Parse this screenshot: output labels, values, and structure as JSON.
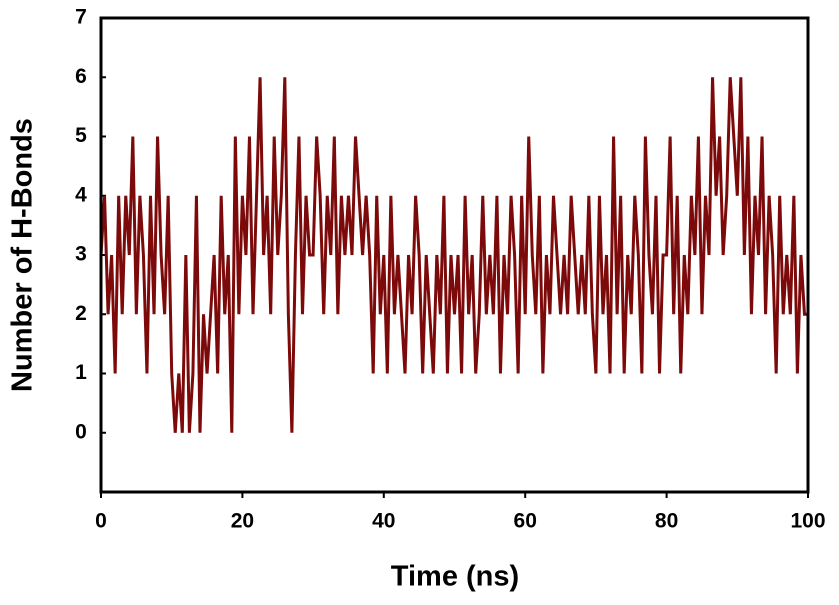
{
  "chart_data": {
    "type": "line",
    "x_label": "Time (ns)",
    "y_label": "Number of H-Bonds",
    "xlim": [
      0,
      100
    ],
    "xticks": [
      0,
      20,
      40,
      60,
      80,
      100
    ],
    "ylim": [
      -1,
      7
    ],
    "yticks": [
      0,
      1,
      2,
      3,
      4,
      5,
      6,
      7
    ],
    "series": [
      {
        "name": "H-Bonds",
        "color": "#7d0a0a",
        "x": [
          0,
          0.5,
          1,
          1.5,
          2,
          2.5,
          3,
          3.5,
          4,
          4.5,
          5,
          5.5,
          6,
          6.5,
          7,
          7.5,
          8,
          8.5,
          9,
          9.5,
          10,
          10.5,
          11,
          11.5,
          12,
          12.5,
          13,
          13.5,
          14,
          14.5,
          15,
          15.5,
          16,
          16.5,
          17,
          17.5,
          18,
          18.5,
          19,
          19.5,
          20,
          20.5,
          21,
          21.5,
          22,
          22.5,
          23,
          23.5,
          24,
          24.5,
          25,
          25.5,
          26,
          26.5,
          27,
          27.5,
          28,
          28.5,
          29,
          29.5,
          30,
          30.5,
          31,
          31.5,
          32,
          32.5,
          33,
          33.5,
          34,
          34.5,
          35,
          35.5,
          36,
          36.5,
          37,
          37.5,
          38,
          38.5,
          39,
          39.5,
          40,
          40.5,
          41,
          41.5,
          42,
          42.5,
          43,
          43.5,
          44,
          44.5,
          45,
          45.5,
          46,
          46.5,
          47,
          47.5,
          48,
          48.5,
          49,
          49.5,
          50,
          50.5,
          51,
          51.5,
          52,
          52.5,
          53,
          53.5,
          54,
          54.5,
          55,
          55.5,
          56,
          56.5,
          57,
          57.5,
          58,
          58.5,
          59,
          59.5,
          60,
          60.5,
          61,
          61.5,
          62,
          62.5,
          63,
          63.5,
          64,
          64.5,
          65,
          65.5,
          66,
          66.5,
          67,
          67.5,
          68,
          68.5,
          69,
          69.5,
          70,
          70.5,
          71,
          71.5,
          72,
          72.5,
          73,
          73.5,
          74,
          74.5,
          75,
          75.5,
          76,
          76.5,
          77,
          77.5,
          78,
          78.5,
          79,
          79.5,
          80,
          80.5,
          81,
          81.5,
          82,
          82.5,
          83,
          83.5,
          84,
          84.5,
          85,
          85.5,
          86,
          86.5,
          87,
          87.5,
          88,
          88.5,
          89,
          89.5,
          90,
          90.5,
          91,
          91.5,
          92,
          92.5,
          93,
          93.5,
          94,
          94.5,
          95,
          95.5,
          96,
          96.5,
          97,
          97.5,
          98,
          98.5,
          99,
          99.5,
          100
        ],
        "values": [
          3,
          4,
          2,
          3,
          1,
          4,
          2,
          4,
          3,
          5,
          2,
          4,
          3,
          1,
          4,
          2,
          5,
          3,
          2,
          4,
          1,
          0,
          1,
          0,
          3,
          0,
          1,
          4,
          0,
          2,
          1,
          2,
          3,
          1,
          4,
          2,
          3,
          0,
          5,
          2,
          4,
          3,
          5,
          2,
          4,
          6,
          3,
          4,
          2,
          5,
          3,
          4,
          6,
          2,
          0,
          3,
          5,
          2,
          4,
          3,
          3,
          5,
          4,
          2,
          4,
          3,
          5,
          2,
          4,
          3,
          4,
          3,
          5,
          4,
          3,
          4,
          3,
          1,
          4,
          2,
          3,
          1,
          4,
          2,
          3,
          2,
          1,
          3,
          2,
          4,
          3,
          1,
          3,
          2,
          1,
          3,
          2,
          4,
          1,
          3,
          2,
          3,
          1,
          4,
          2,
          3,
          1,
          2,
          4,
          2,
          3,
          2,
          4,
          1,
          3,
          2,
          4,
          3,
          1,
          4,
          2,
          5,
          3,
          2,
          4,
          1,
          3,
          2,
          4,
          3,
          2,
          3,
          2,
          4,
          3,
          2,
          3,
          2,
          4,
          2,
          1,
          4,
          2,
          3,
          1,
          5,
          2,
          4,
          1,
          3,
          2,
          4,
          3,
          1,
          5,
          3,
          2,
          4,
          1,
          3,
          3,
          5,
          2,
          4,
          1,
          3,
          2,
          4,
          3,
          5,
          2,
          4,
          3,
          6,
          4,
          5,
          3,
          4,
          6,
          5,
          4,
          6,
          3,
          5,
          2,
          4,
          3,
          5,
          2,
          4,
          3,
          1,
          4,
          2,
          3,
          2,
          4,
          1,
          3,
          2,
          2
        ]
      }
    ]
  }
}
